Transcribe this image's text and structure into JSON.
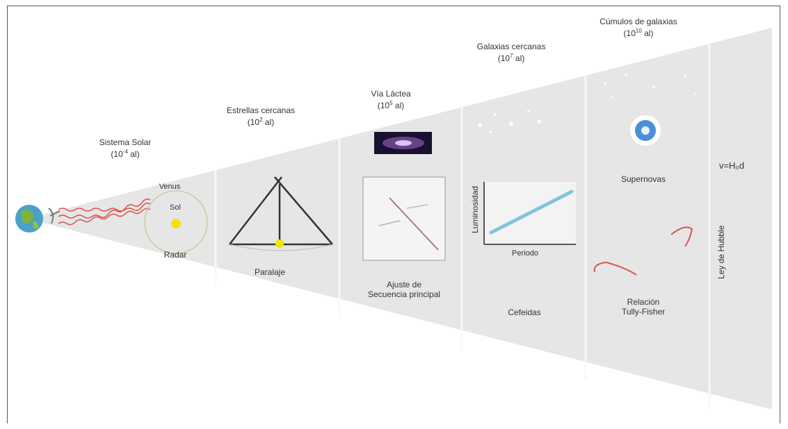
{
  "regions": [
    {
      "title": "Sistema Solar",
      "scale_base": "(10",
      "scale_exp": "-4",
      "scale_unit": " al)"
    },
    {
      "title": "Estrellas cercanas",
      "scale_base": "(10",
      "scale_exp": "2",
      "scale_unit": " al)"
    },
    {
      "title": "Vía Láctea",
      "scale_base": "(10",
      "scale_exp": "5",
      "scale_unit": " al)"
    },
    {
      "title": "Galaxias cercanas",
      "scale_base": "(10",
      "scale_exp": "7",
      "scale_unit": " al)"
    },
    {
      "title": "Cúmulos de galaxias",
      "scale_base": "(10",
      "scale_exp": "10",
      "scale_unit": " al)"
    }
  ],
  "methods": {
    "venus": "Venus",
    "sol": "Sol",
    "radar": "Radar",
    "paralaje": "Paralaje",
    "ajuste_line1": "Ajuste de",
    "ajuste_line2": "Secuencia principal",
    "periodo": "Periodo",
    "luminosidad": "Luminosidad",
    "cefeidas": "Cefeidas",
    "supernovas": "Supernovas",
    "tully_line1": "Relación",
    "tully_line2": "Tully-Fisher",
    "hubble": "Ley de Hubble",
    "hubble_formula": "v=H₀d"
  },
  "colors": {
    "cone": "#e6e6e6",
    "divider": "#f7f7f7",
    "radar_wave": "#d9534f",
    "sun": "#f2e600",
    "cepheid_line": "#7fc4dc",
    "supernova": "#4a90d9"
  }
}
